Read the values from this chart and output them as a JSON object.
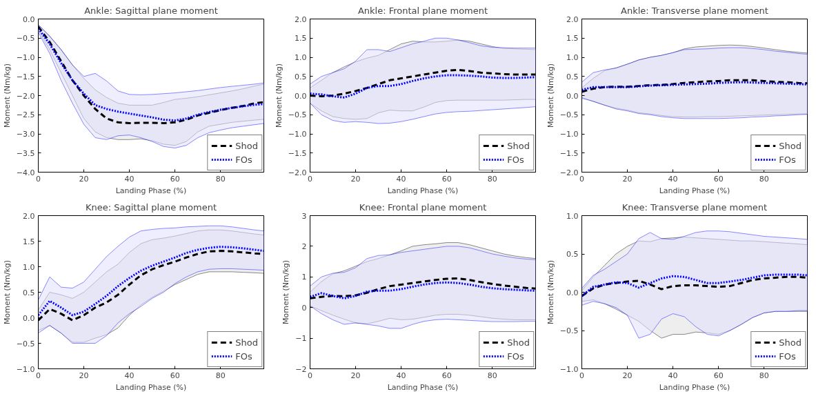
{
  "chart_data": [
    {
      "type": "line",
      "title": "Ankle: Sagittal plane moment",
      "xlabel": "Landing Phase (%)",
      "ylabel": "Moment (Nm/kg)",
      "legend": "bottom right",
      "grid": false,
      "x": [
        0,
        5,
        10,
        15,
        20,
        25,
        30,
        35,
        40,
        45,
        50,
        55,
        60,
        65,
        70,
        75,
        80,
        85,
        90,
        95,
        99
      ],
      "xlim": [
        0,
        99
      ],
      "xticks": [
        0,
        20,
        40,
        60,
        80
      ],
      "ylim": [
        -4,
        0
      ],
      "yticks": [
        {
          "value": -4,
          "label": "−4.0"
        },
        {
          "value": -3.5,
          "label": "−3.5"
        },
        {
          "value": -3,
          "label": "−3.0"
        },
        {
          "value": -2.5,
          "label": "−2.5"
        },
        {
          "value": -2,
          "label": "−2.0"
        },
        {
          "value": -1.5,
          "label": "−1.5"
        },
        {
          "value": -1,
          "label": "−1.0"
        },
        {
          "value": -0.5,
          "label": "−0.5"
        },
        {
          "value": 0,
          "label": "0.0"
        }
      ],
      "series": [
        {
          "name": "Shod",
          "color": "#000000",
          "line_style": "dashed",
          "values": [
            -0.2,
            -0.6,
            -1.1,
            -1.6,
            -2.0,
            -2.35,
            -2.6,
            -2.7,
            -2.72,
            -2.71,
            -2.71,
            -2.72,
            -2.7,
            -2.63,
            -2.52,
            -2.45,
            -2.38,
            -2.32,
            -2.27,
            -2.2,
            -2.17
          ],
          "lower": [
            -0.3,
            -0.8,
            -1.4,
            -2.0,
            -2.6,
            -2.95,
            -3.1,
            -3.15,
            -3.15,
            -3.13,
            -3.18,
            -3.27,
            -3.3,
            -3.2,
            -2.95,
            -2.8,
            -2.75,
            -2.7,
            -2.67,
            -2.64,
            -2.62
          ],
          "upper": [
            -0.15,
            -0.45,
            -0.8,
            -1.2,
            -1.55,
            -1.85,
            -2.05,
            -2.2,
            -2.25,
            -2.25,
            -2.25,
            -2.18,
            -2.1,
            -2.07,
            -2.03,
            -1.98,
            -1.93,
            -1.88,
            -1.82,
            -1.75,
            -1.7
          ]
        },
        {
          "name": "FOs",
          "color": "#0000ff",
          "line_style": "dotted",
          "values": [
            -0.25,
            -0.65,
            -1.15,
            -1.6,
            -1.95,
            -2.25,
            -2.35,
            -2.42,
            -2.47,
            -2.52,
            -2.57,
            -2.63,
            -2.65,
            -2.6,
            -2.5,
            -2.43,
            -2.37,
            -2.32,
            -2.28,
            -2.24,
            -2.22
          ],
          "lower": [
            -0.35,
            -0.9,
            -1.6,
            -2.2,
            -2.75,
            -3.1,
            -3.15,
            -3.05,
            -3.03,
            -3.1,
            -3.2,
            -3.33,
            -3.37,
            -3.3,
            -3.1,
            -2.97,
            -2.9,
            -2.84,
            -2.8,
            -2.76,
            -2.73
          ],
          "upper": [
            -0.15,
            -0.45,
            -0.8,
            -1.2,
            -1.5,
            -1.42,
            -1.62,
            -1.88,
            -1.97,
            -1.98,
            -1.97,
            -1.95,
            -1.93,
            -1.9,
            -1.87,
            -1.83,
            -1.79,
            -1.76,
            -1.73,
            -1.7,
            -1.67
          ]
        }
      ]
    },
    {
      "type": "line",
      "title": "Ankle: Frontal plane moment",
      "xlabel": "Landing Phase (%)",
      "ylabel": "Moment (Nm/kg)",
      "legend": "bottom right",
      "grid": false,
      "x": [
        0,
        5,
        10,
        15,
        20,
        25,
        30,
        35,
        40,
        45,
        50,
        55,
        60,
        65,
        70,
        75,
        80,
        85,
        90,
        95,
        99
      ],
      "xlim": [
        0,
        99
      ],
      "xticks": [
        0,
        20,
        40,
        60,
        80
      ],
      "ylim": [
        -2,
        2
      ],
      "yticks": [
        {
          "value": -2,
          "label": "−2.0"
        },
        {
          "value": -1.5,
          "label": "−1.5"
        },
        {
          "value": -1,
          "label": "−1.0"
        },
        {
          "value": -0.5,
          "label": "−0.5"
        },
        {
          "value": 0,
          "label": "0.0"
        },
        0.5,
        {
          "value": 1,
          "label": "1.0"
        },
        1.5,
        {
          "value": 2,
          "label": "2.0"
        }
      ],
      "series": [
        {
          "name": "Shod",
          "color": "#000000",
          "line_style": "dashed",
          "values": [
            0,
            -0.02,
            0,
            0.05,
            0.12,
            0.2,
            0.3,
            0.4,
            0.45,
            0.5,
            0.55,
            0.6,
            0.65,
            0.67,
            0.64,
            0.6,
            0.58,
            0.56,
            0.55,
            0.55,
            0.55
          ],
          "lower": [
            -0.2,
            -0.4,
            -0.55,
            -0.6,
            -0.62,
            -0.6,
            -0.45,
            -0.38,
            -0.4,
            -0.4,
            -0.3,
            -0.18,
            -0.13,
            -0.12,
            -0.12,
            -0.12,
            -0.12,
            -0.12,
            -0.11,
            -0.1,
            -0.1
          ],
          "upper": [
            0.2,
            0.4,
            0.6,
            0.75,
            0.88,
            0.98,
            1.05,
            1.2,
            1.35,
            1.42,
            1.4,
            1.4,
            1.42,
            1.45,
            1.42,
            1.35,
            1.28,
            1.23,
            1.22,
            1.21,
            1.2
          ]
        },
        {
          "name": "FOs",
          "color": "#0000ff",
          "line_style": "dotted",
          "values": [
            0.05,
            0.03,
            -0.02,
            -0.05,
            0.05,
            0.2,
            0.25,
            0.25,
            0.3,
            0.38,
            0.45,
            0.5,
            0.53,
            0.53,
            0.52,
            0.5,
            0.47,
            0.46,
            0.46,
            0.47,
            0.48
          ],
          "lower": [
            -0.2,
            -0.5,
            -0.65,
            -0.7,
            -0.68,
            -0.7,
            -0.73,
            -0.72,
            -0.68,
            -0.62,
            -0.55,
            -0.48,
            -0.44,
            -0.42,
            -0.41,
            -0.39,
            -0.37,
            -0.35,
            -0.33,
            -0.31,
            -0.29
          ],
          "upper": [
            0.3,
            0.5,
            0.6,
            0.7,
            0.9,
            1.2,
            1.2,
            1.15,
            1.25,
            1.35,
            1.42,
            1.5,
            1.5,
            1.45,
            1.38,
            1.3,
            1.26,
            1.25,
            1.24,
            1.24,
            1.24
          ]
        }
      ]
    },
    {
      "type": "line",
      "title": "Ankle: Transverse plane moment",
      "xlabel": "Landing Phase (%)",
      "ylabel": "Moment (Nm/kg)",
      "legend": "bottom right",
      "grid": false,
      "x": [
        0,
        5,
        10,
        15,
        20,
        25,
        30,
        35,
        40,
        45,
        50,
        55,
        60,
        65,
        70,
        75,
        80,
        85,
        90,
        95,
        99
      ],
      "xlim": [
        0,
        99
      ],
      "xticks": [
        0,
        20,
        40,
        60,
        80
      ],
      "ylim": [
        -2,
        2
      ],
      "yticks": [
        {
          "value": -2,
          "label": "−2.0"
        },
        {
          "value": -1.5,
          "label": "−1.5"
        },
        {
          "value": -1,
          "label": "−1.0"
        },
        {
          "value": -0.5,
          "label": "−0.5"
        },
        {
          "value": 0,
          "label": "0.0"
        },
        0.5,
        {
          "value": 1,
          "label": "1.0"
        },
        1.5,
        {
          "value": 2,
          "label": "2.0"
        }
      ],
      "series": [
        {
          "name": "Shod",
          "color": "#000000",
          "line_style": "dashed",
          "values": [
            0.1,
            0.18,
            0.22,
            0.23,
            0.23,
            0.25,
            0.27,
            0.28,
            0.3,
            0.33,
            0.35,
            0.37,
            0.38,
            0.4,
            0.4,
            0.4,
            0.38,
            0.36,
            0.35,
            0.33,
            0.32
          ],
          "lower": [
            -0.05,
            -0.15,
            -0.25,
            -0.33,
            -0.38,
            -0.45,
            -0.48,
            -0.52,
            -0.55,
            -0.56,
            -0.56,
            -0.55,
            -0.55,
            -0.54,
            -0.53,
            -0.52,
            -0.51,
            -0.5,
            -0.49,
            -0.48,
            -0.48
          ],
          "upper": [
            0.2,
            0.45,
            0.65,
            0.72,
            0.82,
            0.93,
            1.0,
            1.05,
            1.12,
            1.22,
            1.27,
            1.29,
            1.31,
            1.32,
            1.31,
            1.28,
            1.24,
            1.2,
            1.16,
            1.13,
            1.11
          ]
        },
        {
          "name": "FOs",
          "color": "#0000ff",
          "line_style": "dotted",
          "values": [
            0.15,
            0.22,
            0.22,
            0.22,
            0.22,
            0.24,
            0.26,
            0.27,
            0.28,
            0.29,
            0.3,
            0.31,
            0.33,
            0.34,
            0.35,
            0.34,
            0.33,
            0.32,
            0.31,
            0.3,
            0.29
          ],
          "lower": [
            -0.07,
            -0.15,
            -0.25,
            -0.35,
            -0.4,
            -0.47,
            -0.5,
            -0.55,
            -0.58,
            -0.6,
            -0.6,
            -0.6,
            -0.6,
            -0.59,
            -0.58,
            -0.56,
            -0.55,
            -0.53,
            -0.52,
            -0.5,
            -0.49
          ],
          "upper": [
            0.35,
            0.6,
            0.67,
            0.72,
            0.82,
            0.93,
            1.0,
            1.05,
            1.12,
            1.2,
            1.21,
            1.22,
            1.24,
            1.25,
            1.25,
            1.23,
            1.2,
            1.16,
            1.13,
            1.1,
            1.08
          ]
        }
      ]
    },
    {
      "type": "line",
      "title": "Knee: Sagittal plane moment",
      "xlabel": "Landing Phase (%)",
      "ylabel": "Moment (Nm/kg)",
      "legend": "bottom right",
      "grid": false,
      "x": [
        0,
        5,
        10,
        15,
        20,
        25,
        30,
        35,
        40,
        45,
        50,
        55,
        60,
        65,
        70,
        75,
        80,
        85,
        90,
        95,
        99
      ],
      "xlim": [
        0,
        99
      ],
      "xticks": [
        0,
        20,
        40,
        60,
        80
      ],
      "ylim": [
        -1,
        2
      ],
      "yticks": [
        {
          "value": -1,
          "label": "−1.0"
        },
        {
          "value": -0.5,
          "label": "−0.5"
        },
        {
          "value": 0,
          "label": "0.0"
        },
        0.5,
        {
          "value": 1,
          "label": "1.0"
        },
        1.5,
        {
          "value": 2,
          "label": "2.0"
        }
      ],
      "series": [
        {
          "name": "Shod",
          "color": "#000000",
          "line_style": "dashed",
          "values": [
            -0.05,
            0.17,
            0.08,
            -0.05,
            0.05,
            0.2,
            0.3,
            0.45,
            0.65,
            0.83,
            0.95,
            1.03,
            1.1,
            1.18,
            1.25,
            1.3,
            1.31,
            1.3,
            1.28,
            1.26,
            1.25
          ],
          "lower": [
            -0.25,
            -0.15,
            -0.3,
            -0.48,
            -0.48,
            -0.4,
            -0.33,
            -0.2,
            0.05,
            0.25,
            0.4,
            0.52,
            0.65,
            0.75,
            0.85,
            0.9,
            0.9,
            0.9,
            0.89,
            0.88,
            0.87
          ],
          "upper": [
            0.15,
            0.5,
            0.45,
            0.38,
            0.5,
            0.7,
            0.9,
            1.05,
            1.28,
            1.45,
            1.53,
            1.56,
            1.6,
            1.65,
            1.7,
            1.72,
            1.72,
            1.7,
            1.67,
            1.64,
            1.62
          ]
        },
        {
          "name": "FOs",
          "color": "#0000ff",
          "line_style": "dotted",
          "values": [
            0.05,
            0.33,
            0.2,
            0.05,
            0.12,
            0.27,
            0.43,
            0.62,
            0.78,
            0.92,
            1.02,
            1.1,
            1.18,
            1.27,
            1.33,
            1.37,
            1.39,
            1.38,
            1.36,
            1.33,
            1.31
          ],
          "lower": [
            -0.3,
            -0.15,
            -0.3,
            -0.5,
            -0.5,
            -0.5,
            -0.35,
            -0.1,
            0.08,
            0.22,
            0.38,
            0.5,
            0.67,
            0.8,
            0.9,
            0.95,
            0.96,
            0.96,
            0.95,
            0.94,
            0.93
          ],
          "upper": [
            0.35,
            0.8,
            0.6,
            0.58,
            0.7,
            0.95,
            1.2,
            1.4,
            1.58,
            1.7,
            1.73,
            1.75,
            1.76,
            1.78,
            1.79,
            1.8,
            1.8,
            1.78,
            1.75,
            1.72,
            1.7
          ]
        }
      ]
    },
    {
      "type": "line",
      "title": "Knee: Frontal plane moment",
      "xlabel": "Landing Phase (%)",
      "ylabel": "Moment (Nm/kg)",
      "legend": "bottom right",
      "grid": false,
      "x": [
        0,
        5,
        10,
        15,
        20,
        25,
        30,
        35,
        40,
        45,
        50,
        55,
        60,
        65,
        70,
        75,
        80,
        85,
        90,
        95,
        99
      ],
      "xlim": [
        0,
        99
      ],
      "xticks": [
        0,
        20,
        40,
        60,
        80
      ],
      "ylim": [
        -2,
        3
      ],
      "yticks": [
        {
          "value": -2,
          "label": "−2"
        },
        {
          "value": -1,
          "label": "−1"
        },
        0,
        1,
        2,
        3
      ],
      "series": [
        {
          "name": "Shod",
          "color": "#000000",
          "line_style": "dashed",
          "values": [
            0.3,
            0.35,
            0.38,
            0.37,
            0.4,
            0.48,
            0.6,
            0.7,
            0.75,
            0.8,
            0.85,
            0.9,
            0.94,
            0.95,
            0.9,
            0.83,
            0.77,
            0.72,
            0.68,
            0.64,
            0.62
          ],
          "lower": [
            0.05,
            -0.1,
            -0.25,
            -0.38,
            -0.5,
            -0.53,
            -0.45,
            -0.35,
            -0.4,
            -0.38,
            -0.32,
            -0.25,
            -0.22,
            -0.22,
            -0.25,
            -0.3,
            -0.35,
            -0.38,
            -0.4,
            -0.4,
            -0.4
          ],
          "upper": [
            0.5,
            0.85,
            1.1,
            1.2,
            1.35,
            1.5,
            1.6,
            1.72,
            1.85,
            2.0,
            2.05,
            2.08,
            2.12,
            2.12,
            2.05,
            1.95,
            1.85,
            1.75,
            1.68,
            1.63,
            1.6
          ]
        },
        {
          "name": "FOs",
          "color": "#0000ff",
          "line_style": "dotted",
          "values": [
            0.35,
            0.47,
            0.38,
            0.3,
            0.38,
            0.52,
            0.55,
            0.55,
            0.6,
            0.68,
            0.75,
            0.8,
            0.82,
            0.8,
            0.75,
            0.68,
            0.63,
            0.6,
            0.58,
            0.56,
            0.55
          ],
          "lower": [
            0.05,
            -0.2,
            -0.4,
            -0.55,
            -0.5,
            -0.55,
            -0.6,
            -0.68,
            -0.68,
            -0.55,
            -0.45,
            -0.4,
            -0.38,
            -0.4,
            -0.42,
            -0.44,
            -0.46,
            -0.46,
            -0.46,
            -0.45,
            -0.45
          ],
          "upper": [
            0.7,
            1.0,
            1.12,
            1.15,
            1.3,
            1.6,
            1.7,
            1.72,
            1.8,
            1.85,
            1.9,
            1.95,
            2.0,
            2.0,
            1.95,
            1.85,
            1.75,
            1.68,
            1.62,
            1.58,
            1.56
          ]
        }
      ]
    },
    {
      "type": "line",
      "title": "Knee: Transverse plane moment",
      "xlabel": "Landing Phase (%)",
      "ylabel": "Moment (Nm/kg)",
      "legend": "bottom right",
      "grid": false,
      "x": [
        0,
        5,
        10,
        15,
        20,
        25,
        30,
        35,
        40,
        45,
        50,
        55,
        60,
        65,
        70,
        75,
        80,
        85,
        90,
        95,
        99
      ],
      "xlim": [
        0,
        99
      ],
      "xticks": [
        0,
        20,
        40,
        60,
        80
      ],
      "ylim": [
        -1,
        1
      ],
      "yticks": [
        {
          "value": -1,
          "label": "−1.0"
        },
        {
          "value": -0.5,
          "label": "−0.5"
        },
        {
          "value": 0,
          "label": "0.0"
        },
        0.5,
        {
          "value": 1,
          "label": "1.0"
        }
      ],
      "series": [
        {
          "name": "Shod",
          "color": "#000000",
          "line_style": "dashed",
          "values": [
            -0.05,
            0.05,
            0.1,
            0.12,
            0.14,
            0.15,
            0.1,
            0.04,
            0.08,
            0.09,
            0.09,
            0.08,
            0.07,
            0.08,
            0.12,
            0.16,
            0.18,
            0.19,
            0.2,
            0.2,
            0.19
          ],
          "lower": [
            -0.12,
            -0.1,
            -0.15,
            -0.22,
            -0.3,
            -0.38,
            -0.5,
            -0.6,
            -0.55,
            -0.55,
            -0.52,
            -0.53,
            -0.55,
            -0.5,
            -0.42,
            -0.33,
            -0.27,
            -0.25,
            -0.25,
            -0.25,
            -0.25
          ],
          "upper": [
            0.02,
            0.2,
            0.35,
            0.5,
            0.6,
            0.67,
            0.66,
            0.7,
            0.71,
            0.72,
            0.71,
            0.7,
            0.69,
            0.68,
            0.67,
            0.67,
            0.66,
            0.65,
            0.64,
            0.63,
            0.62
          ]
        },
        {
          "name": "FOs",
          "color": "#0000ff",
          "line_style": "dotted",
          "values": [
            -0.05,
            0.07,
            0.1,
            0.13,
            0.12,
            0.06,
            0.12,
            0.18,
            0.21,
            0.2,
            0.16,
            0.12,
            0.12,
            0.14,
            0.16,
            0.19,
            0.22,
            0.23,
            0.23,
            0.23,
            0.22
          ],
          "lower": [
            -0.17,
            -0.12,
            -0.15,
            -0.2,
            -0.3,
            -0.6,
            -0.55,
            -0.35,
            -0.28,
            -0.32,
            -0.45,
            -0.55,
            -0.57,
            -0.5,
            -0.42,
            -0.33,
            -0.27,
            -0.25,
            -0.25,
            -0.24,
            -0.24
          ],
          "upper": [
            0.05,
            0.22,
            0.3,
            0.4,
            0.5,
            0.7,
            0.78,
            0.7,
            0.69,
            0.73,
            0.78,
            0.8,
            0.8,
            0.79,
            0.77,
            0.75,
            0.73,
            0.72,
            0.71,
            0.7,
            0.69
          ]
        }
      ]
    }
  ]
}
